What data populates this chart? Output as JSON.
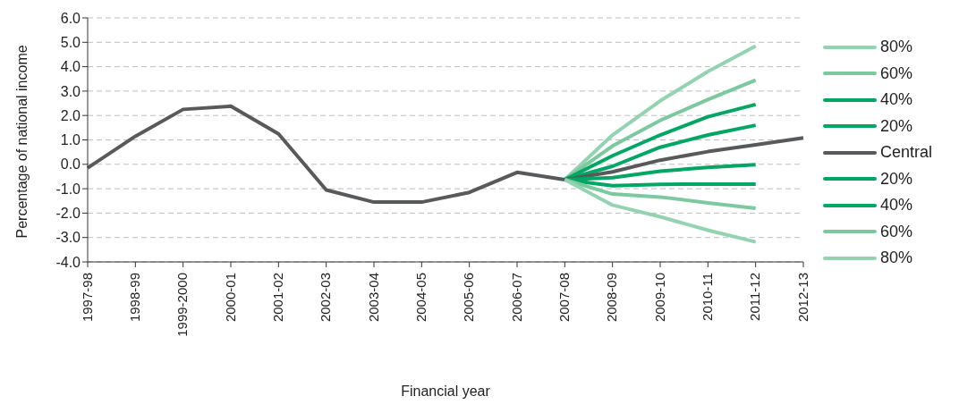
{
  "chart_data": {
    "type": "line",
    "xlabel": "Financial year",
    "ylabel": "Percentage of national income",
    "categories": [
      "1997-98",
      "1998-99",
      "1999-2000",
      "2000-01",
      "2001-02",
      "2002-03",
      "2003-04",
      "2004-05",
      "2005-06",
      "2006-07",
      "2007-08",
      "2008-09",
      "2009-10",
      "2010-11",
      "2011-12",
      "2012-13"
    ],
    "series": [
      {
        "name": "80%",
        "color": "#94d3b1",
        "values": [
          null,
          null,
          null,
          null,
          null,
          null,
          null,
          null,
          null,
          null,
          -0.63,
          1.2,
          2.6,
          3.8,
          4.85,
          null
        ]
      },
      {
        "name": "60%",
        "color": "#7cc9a0",
        "values": [
          null,
          null,
          null,
          null,
          null,
          null,
          null,
          null,
          null,
          null,
          -0.63,
          0.75,
          1.8,
          2.65,
          3.45,
          null
        ]
      },
      {
        "name": "40%",
        "color": "#00a664",
        "values": [
          null,
          null,
          null,
          null,
          null,
          null,
          null,
          null,
          null,
          null,
          -0.63,
          0.35,
          1.2,
          1.95,
          2.45,
          null
        ]
      },
      {
        "name": "20%",
        "color": "#00a664",
        "values": [
          null,
          null,
          null,
          null,
          null,
          null,
          null,
          null,
          null,
          null,
          -0.63,
          -0.08,
          0.7,
          1.2,
          1.6,
          null
        ]
      },
      {
        "name": "Central",
        "color": "#58595b",
        "values": [
          -0.15,
          1.15,
          2.25,
          2.38,
          1.25,
          -1.05,
          -1.55,
          -1.55,
          -1.15,
          -0.33,
          -0.63,
          -0.31,
          0.17,
          0.52,
          0.8,
          1.08
        ]
      },
      {
        "name": "20%",
        "color": "#00a664",
        "values": [
          null,
          null,
          null,
          null,
          null,
          null,
          null,
          null,
          null,
          null,
          -0.63,
          -0.55,
          -0.28,
          -0.13,
          -0.02,
          null
        ]
      },
      {
        "name": "40%",
        "color": "#00a664",
        "values": [
          null,
          null,
          null,
          null,
          null,
          null,
          null,
          null,
          null,
          null,
          -0.63,
          -0.88,
          -0.82,
          -0.81,
          -0.81,
          null
        ]
      },
      {
        "name": "60%",
        "color": "#7cc9a0",
        "values": [
          null,
          null,
          null,
          null,
          null,
          null,
          null,
          null,
          null,
          null,
          -0.63,
          -1.22,
          -1.34,
          -1.58,
          -1.8,
          null
        ]
      },
      {
        "name": "80%",
        "color": "#94d3b1",
        "values": [
          null,
          null,
          null,
          null,
          null,
          null,
          null,
          null,
          null,
          null,
          -0.63,
          -1.67,
          -2.15,
          -2.7,
          -3.18,
          null
        ]
      }
    ],
    "ylim": [
      -4,
      6
    ],
    "yticks": [
      {
        "value": -4,
        "label": "-4.0"
      },
      {
        "value": -3,
        "label": "-3.0"
      },
      {
        "value": -2,
        "label": "-2.0"
      },
      {
        "value": -1,
        "label": "-1.0"
      },
      {
        "value": 0,
        "label": "0.0"
      },
      {
        "value": 1,
        "label": "1.0"
      },
      {
        "value": 2,
        "label": "2.0"
      },
      {
        "value": 3,
        "label": "3.0"
      },
      {
        "value": 4,
        "label": "4.0"
      },
      {
        "value": 5,
        "label": "5.0"
      },
      {
        "value": 6,
        "label": "6.0"
      }
    ],
    "grid": "y",
    "legend": "right",
    "marker": "none",
    "line_style": "solid"
  }
}
